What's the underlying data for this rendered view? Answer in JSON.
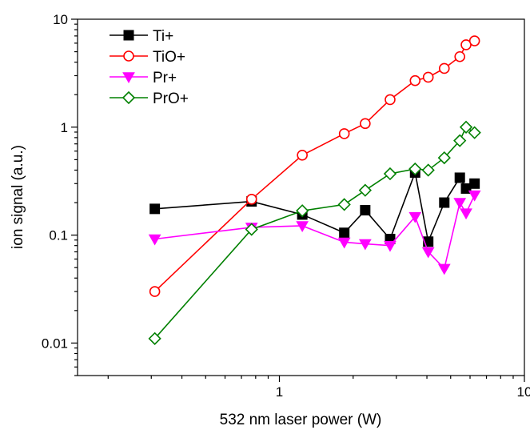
{
  "chart_data": {
    "type": "line",
    "title": "",
    "xlabel": "532 nm laser power (W)",
    "ylabel": "ion signal (a.u.)",
    "x_scale": "log",
    "y_scale": "log",
    "xlim": [
      0.15,
      10
    ],
    "ylim": [
      0.005,
      10
    ],
    "x_ticks": [
      {
        "value": 1,
        "label": "1"
      },
      {
        "value": 10,
        "label": "10"
      }
    ],
    "y_ticks": [
      {
        "value": 0.01,
        "label": "0.01"
      },
      {
        "value": 0.1,
        "label": "0.1"
      },
      {
        "value": 1,
        "label": "1"
      },
      {
        "value": 10,
        "label": "10"
      }
    ],
    "grid": false,
    "legend_position": "top-left",
    "series": [
      {
        "name": "Ti+",
        "color": "#000000",
        "marker": "filled-square",
        "points": [
          [
            0.31,
            0.175
          ],
          [
            0.77,
            0.205
          ],
          [
            1.24,
            0.155
          ],
          [
            1.84,
            0.105
          ],
          [
            2.24,
            0.17
          ],
          [
            2.83,
            0.092
          ],
          [
            3.58,
            0.38
          ],
          [
            4.05,
            0.087
          ],
          [
            4.71,
            0.2
          ],
          [
            5.45,
            0.34
          ],
          [
            5.78,
            0.27
          ],
          [
            6.26,
            0.3
          ]
        ]
      },
      {
        "name": "TiO+",
        "color": "#ff0000",
        "marker": "open-circle",
        "points": [
          [
            0.31,
            0.03
          ],
          [
            0.77,
            0.215
          ],
          [
            1.24,
            0.55
          ],
          [
            1.84,
            0.87
          ],
          [
            2.24,
            1.08
          ],
          [
            2.83,
            1.8
          ],
          [
            3.58,
            2.7
          ],
          [
            4.05,
            2.9
          ],
          [
            4.71,
            3.5
          ],
          [
            5.45,
            4.5
          ],
          [
            5.78,
            5.8
          ],
          [
            6.26,
            6.3
          ]
        ]
      },
      {
        "name": "Pr+",
        "color": "#ff00ff",
        "marker": "filled-triangle-down",
        "points": [
          [
            0.31,
            0.092
          ],
          [
            0.77,
            0.118
          ],
          [
            1.24,
            0.122
          ],
          [
            1.84,
            0.086
          ],
          [
            2.24,
            0.083
          ],
          [
            2.83,
            0.08
          ],
          [
            3.58,
            0.148
          ],
          [
            4.05,
            0.07
          ],
          [
            4.71,
            0.049
          ],
          [
            5.45,
            0.2
          ],
          [
            5.78,
            0.16
          ],
          [
            6.26,
            0.235
          ]
        ]
      },
      {
        "name": "PrO+",
        "color": "#008000",
        "marker": "open-diamond",
        "points": [
          [
            0.31,
            0.011
          ],
          [
            0.77,
            0.113
          ],
          [
            1.24,
            0.168
          ],
          [
            1.84,
            0.192
          ],
          [
            2.24,
            0.26
          ],
          [
            2.83,
            0.37
          ],
          [
            3.58,
            0.41
          ],
          [
            4.05,
            0.4
          ],
          [
            4.71,
            0.52
          ],
          [
            5.45,
            0.75
          ],
          [
            5.78,
            1.0
          ],
          [
            6.26,
            0.89
          ]
        ]
      }
    ]
  }
}
